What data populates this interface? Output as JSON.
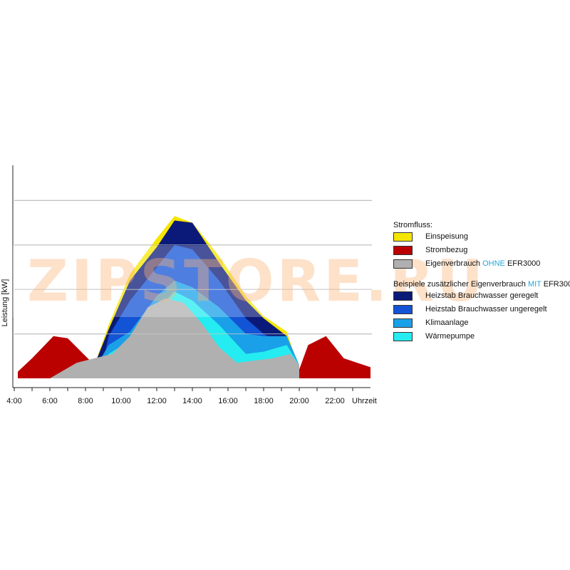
{
  "chart_data": {
    "type": "area",
    "ylabel": "Leistung [kW]",
    "xlabel": "Uhrzeit",
    "xlim": [
      4,
      24
    ],
    "x_ticks": [
      4,
      6,
      8,
      10,
      12,
      14,
      16,
      18,
      20,
      22
    ],
    "x_tick_labels": [
      "4:00",
      "6:00",
      "8:00",
      "10:00",
      "12:00",
      "14:00",
      "16:00",
      "18:00",
      "20:00",
      "22:00"
    ],
    "ylim": [
      0,
      5
    ],
    "y_gridlines": [
      1,
      2,
      3,
      4
    ],
    "grid": true,
    "legend_position": "right",
    "series": [
      {
        "name": "Strombezug",
        "color": "#bb0000",
        "x": [
          4.2,
          5.0,
          6.2,
          7.0,
          8.0,
          8.5,
          20.0,
          20.5,
          21.5,
          22.5,
          24.0
        ],
        "y": [
          0.15,
          0.45,
          0.95,
          0.9,
          0.5,
          0.3,
          0.2,
          0.75,
          0.95,
          0.45,
          0.25
        ]
      },
      {
        "name": "Einspeisung",
        "color": "#f5e600",
        "x": [
          8.5,
          9.3,
          10.5,
          12.0,
          13.0,
          14.0,
          15.5,
          17.0,
          18.0,
          19.3,
          20.0
        ],
        "y": [
          0.3,
          1.2,
          2.35,
          3.15,
          3.65,
          3.5,
          2.75,
          1.85,
          1.4,
          1.05,
          0.2
        ]
      },
      {
        "name": "Heizstab Brauchwasser geregelt",
        "color": "#0b1a78",
        "x": [
          8.5,
          9.3,
          10.5,
          12.0,
          13.0,
          14.0,
          15.5,
          17.0,
          18.0,
          19.3,
          20.0
        ],
        "y": [
          0.3,
          1.1,
          2.2,
          2.95,
          3.55,
          3.5,
          2.6,
          1.75,
          1.35,
          0.95,
          0.2
        ]
      },
      {
        "name": "Heizstab Brauchwasser ungeregelt",
        "color": "#1353d6",
        "x": [
          9.0,
          9.3,
          10.5,
          12.0,
          13.0,
          14.0,
          15.5,
          17.0,
          18.0,
          19.3,
          20.0
        ],
        "y": [
          0.4,
          0.95,
          1.75,
          2.5,
          3.0,
          2.9,
          2.2,
          1.35,
          1.0,
          0.75,
          0.3
        ]
      },
      {
        "name": "Klimaanlage",
        "color": "#1aa0e8",
        "x": [
          8.8,
          9.3,
          10.5,
          12.0,
          13.0,
          14.0,
          15.5,
          17.0,
          18.0,
          19.3,
          20.0
        ],
        "y": [
          0.4,
          0.75,
          1.05,
          1.85,
          2.2,
          2.05,
          1.6,
          1.0,
          0.95,
          0.95,
          0.3
        ]
      },
      {
        "name": "Wärmepumpe",
        "color": "#25ecf0",
        "x": [
          8.8,
          9.3,
          10.5,
          12.0,
          13.0,
          14.0,
          15.5,
          17.0,
          18.0,
          19.3,
          20.0
        ],
        "y": [
          0.3,
          0.55,
          0.85,
          1.55,
          1.95,
          1.75,
          1.2,
          0.55,
          0.6,
          0.75,
          0.3
        ]
      },
      {
        "name": "Eigenverbrauch OHNE EFR3000",
        "color": "#b0b0b0",
        "x": [
          6.0,
          7.5,
          8.5,
          9.5,
          10.5,
          11.5,
          12.5,
          13.5,
          14.5,
          15.5,
          16.5,
          17.5,
          18.5,
          19.5,
          20.0
        ],
        "y": [
          0.0,
          0.35,
          0.45,
          0.55,
          0.95,
          1.6,
          1.8,
          1.7,
          1.25,
          0.7,
          0.35,
          0.4,
          0.45,
          0.55,
          0.3
        ]
      }
    ]
  },
  "legend": {
    "heading": "Stromfluss:",
    "group1": [
      {
        "label": "Einspeisung",
        "color": "#f5e600"
      },
      {
        "label": "Strombezug",
        "color": "#bb0000"
      },
      {
        "label_before": "Eigenverbrauch ",
        "label_accent": "OHNE",
        "label_after": " EFR3000",
        "color": "#b0b0b0"
      }
    ],
    "group2_heading": {
      "before": "Beispiele zusätzlicher Eigenverbrauch ",
      "accent": "MIT",
      "after": " EFR3000"
    },
    "group2": [
      {
        "label": "Heizstab Brauchwasser geregelt",
        "color": "#0b1a78"
      },
      {
        "label": "Heizstab Brauchwasser ungeregelt",
        "color": "#1353d6"
      },
      {
        "label": "Klimaanlage",
        "color": "#1aa0e8"
      },
      {
        "label": "Wärmepumpe",
        "color": "#25ecf0"
      }
    ]
  },
  "watermark": "ZIPSTORE.RU"
}
